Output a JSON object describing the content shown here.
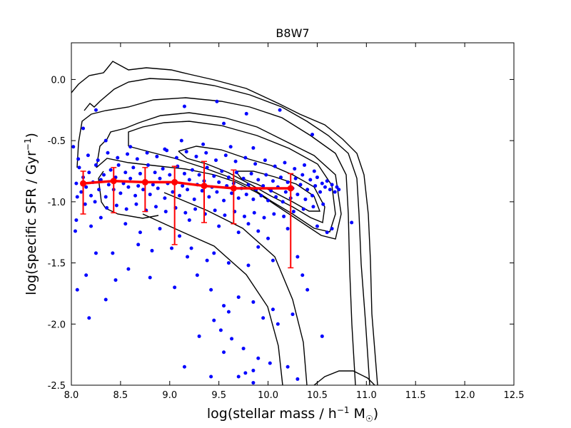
{
  "chart_data": {
    "type": "scatter",
    "title": "B8W7",
    "xlabel": {
      "main": "log(stellar mass / h",
      "sup": "−1",
      "unit": " M",
      "sub": "☉",
      "close": ")"
    },
    "ylabel": {
      "main": "log(specific SFR / Gyr",
      "sup": "−1",
      "close": ")"
    },
    "xlim": [
      8.0,
      12.5
    ],
    "ylim": [
      -2.5,
      0.3
    ],
    "xticks": [
      8.0,
      8.5,
      9.0,
      9.5,
      10.0,
      10.5,
      11.0,
      11.5,
      12.0,
      12.5
    ],
    "xtick_labels": [
      "8.0",
      "8.5",
      "9.0",
      "9.5",
      "10.0",
      "10.5",
      "11.0",
      "11.5",
      "12.0",
      "12.5"
    ],
    "yticks": [
      0.0,
      -0.5,
      -1.0,
      -1.5,
      -2.0,
      -2.5
    ],
    "ytick_labels": [
      "0.0",
      "-0.5",
      "-1.0",
      "-1.5",
      "-2.0",
      "-2.5"
    ],
    "colors": {
      "points": "#0000ff",
      "median": "#ff0000",
      "contours": "#000000"
    },
    "median_series": {
      "name": "median",
      "x": [
        8.12,
        8.43,
        8.75,
        9.05,
        9.35,
        9.65,
        10.23
      ],
      "y": [
        -0.85,
        -0.83,
        -0.84,
        -0.84,
        -0.87,
        -0.89,
        -0.89
      ],
      "err_low": [
        -1.1,
        -1.09,
        -1.08,
        -1.35,
        -1.17,
        -1.18,
        -1.54
      ],
      "err_high": [
        -0.75,
        -0.72,
        -0.72,
        -0.71,
        -0.67,
        -0.74,
        -0.77
      ]
    },
    "scatter_points": [
      [
        8.05,
        -0.85
      ],
      [
        8.08,
        -0.72
      ],
      [
        8.1,
        -0.92
      ],
      [
        8.12,
        -0.8
      ],
      [
        8.15,
        -0.88
      ],
      [
        8.18,
        -0.76
      ],
      [
        8.2,
        -0.95
      ],
      [
        8.22,
        -0.84
      ],
      [
        8.25,
        -0.7
      ],
      [
        8.28,
        -0.9
      ],
      [
        8.3,
        -0.82
      ],
      [
        8.33,
        -0.78
      ],
      [
        8.35,
        -0.96
      ],
      [
        8.38,
        -0.86
      ],
      [
        8.4,
        -0.74
      ],
      [
        8.43,
        -0.9
      ],
      [
        8.45,
        -0.8
      ],
      [
        8.48,
        -0.7
      ],
      [
        8.5,
        -0.93
      ],
      [
        8.53,
        -0.85
      ],
      [
        8.55,
        -0.76
      ],
      [
        8.58,
        -0.88
      ],
      [
        8.6,
        -0.81
      ],
      [
        8.63,
        -0.72
      ],
      [
        8.65,
        -0.95
      ],
      [
        8.68,
        -0.87
      ],
      [
        8.7,
        -0.77
      ],
      [
        8.73,
        -0.9
      ],
      [
        8.75,
        -0.83
      ],
      [
        8.78,
        -0.7
      ],
      [
        8.8,
        -0.94
      ],
      [
        8.83,
        -0.86
      ],
      [
        8.85,
        -0.76
      ],
      [
        8.88,
        -0.89
      ],
      [
        8.9,
        -0.81
      ],
      [
        8.93,
        -0.73
      ],
      [
        8.95,
        -0.97
      ],
      [
        8.98,
        -0.85
      ],
      [
        9.0,
        -0.78
      ],
      [
        9.03,
        -0.92
      ],
      [
        9.05,
        -0.83
      ],
      [
        9.08,
        -0.71
      ],
      [
        9.1,
        -0.95
      ],
      [
        9.13,
        -0.87
      ],
      [
        9.15,
        -0.77
      ],
      [
        9.18,
        -0.9
      ],
      [
        9.2,
        -0.82
      ],
      [
        9.23,
        -0.74
      ],
      [
        9.25,
        -0.98
      ],
      [
        9.28,
        -0.86
      ],
      [
        9.3,
        -0.78
      ],
      [
        9.33,
        -0.91
      ],
      [
        9.35,
        -0.83
      ],
      [
        9.38,
        -0.72
      ],
      [
        9.4,
        -0.96
      ],
      [
        9.43,
        -0.88
      ],
      [
        9.45,
        -0.79
      ],
      [
        9.48,
        -0.92
      ],
      [
        9.5,
        -0.84
      ],
      [
        9.53,
        -0.75
      ],
      [
        9.55,
        -0.99
      ],
      [
        9.58,
        -0.87
      ],
      [
        9.6,
        -0.8
      ],
      [
        9.63,
        -0.93
      ],
      [
        9.65,
        -0.85
      ],
      [
        9.68,
        -0.76
      ],
      [
        9.7,
        -0.97
      ],
      [
        9.73,
        -0.89
      ],
      [
        9.75,
        -0.81
      ],
      [
        9.78,
        -0.94
      ],
      [
        9.8,
        -0.86
      ],
      [
        9.83,
        -0.77
      ],
      [
        9.85,
        -0.98
      ],
      [
        9.88,
        -0.9
      ],
      [
        9.9,
        -0.82
      ],
      [
        9.93,
        -0.95
      ],
      [
        9.95,
        -0.87
      ],
      [
        9.98,
        -0.78
      ],
      [
        10.0,
        -0.99
      ],
      [
        10.03,
        -0.91
      ],
      [
        10.05,
        -0.83
      ],
      [
        10.08,
        -0.96
      ],
      [
        10.1,
        -0.88
      ],
      [
        10.13,
        -0.8
      ],
      [
        10.15,
        -1.0
      ],
      [
        10.18,
        -0.92
      ],
      [
        10.2,
        -0.84
      ],
      [
        10.23,
        -0.97
      ],
      [
        10.25,
        -0.89
      ],
      [
        10.28,
        -0.81
      ],
      [
        10.3,
        -0.94
      ],
      [
        10.33,
        -0.86
      ],
      [
        10.35,
        -0.78
      ],
      [
        10.38,
        -0.98
      ],
      [
        10.4,
        -0.9
      ],
      [
        10.43,
        -0.82
      ],
      [
        10.45,
        -0.95
      ],
      [
        10.48,
        -0.87
      ],
      [
        10.5,
        -0.8
      ],
      [
        10.53,
        -0.92
      ],
      [
        10.55,
        -0.85
      ],
      [
        10.58,
        -0.88
      ],
      [
        10.6,
        -0.83
      ],
      [
        10.63,
        -0.9
      ],
      [
        10.65,
        -0.86
      ],
      [
        10.68,
        -0.92
      ],
      [
        10.7,
        -0.88
      ],
      [
        10.72,
        -0.9
      ],
      [
        8.06,
        -0.96
      ],
      [
        8.14,
        -1.02
      ],
      [
        8.24,
        -1.0
      ],
      [
        8.36,
        -1.05
      ],
      [
        8.46,
        -1.03
      ],
      [
        8.56,
        -1.06
      ],
      [
        8.66,
        -1.02
      ],
      [
        8.76,
        -1.07
      ],
      [
        8.86,
        -1.04
      ],
      [
        8.96,
        -1.08
      ],
      [
        9.06,
        -1.05
      ],
      [
        9.16,
        -1.09
      ],
      [
        9.26,
        -1.06
      ],
      [
        9.36,
        -1.1
      ],
      [
        9.46,
        -1.07
      ],
      [
        9.56,
        -1.11
      ],
      [
        9.66,
        -1.08
      ],
      [
        9.76,
        -1.12
      ],
      [
        9.86,
        -1.09
      ],
      [
        9.96,
        -1.13
      ],
      [
        10.06,
        -1.1
      ],
      [
        10.16,
        -1.12
      ],
      [
        10.26,
        -1.08
      ],
      [
        10.36,
        -1.06
      ],
      [
        10.46,
        -1.04
      ],
      [
        10.56,
        -1.02
      ],
      [
        8.07,
        -0.65
      ],
      [
        8.17,
        -0.62
      ],
      [
        8.27,
        -0.66
      ],
      [
        8.37,
        -0.6
      ],
      [
        8.47,
        -0.64
      ],
      [
        8.57,
        -0.61
      ],
      [
        8.67,
        -0.65
      ],
      [
        8.77,
        -0.6
      ],
      [
        8.87,
        -0.63
      ],
      [
        8.97,
        -0.58
      ],
      [
        9.07,
        -0.64
      ],
      [
        9.17,
        -0.59
      ],
      [
        9.27,
        -0.63
      ],
      [
        9.37,
        -0.6
      ],
      [
        9.47,
        -0.66
      ],
      [
        9.57,
        -0.62
      ],
      [
        9.67,
        -0.67
      ],
      [
        9.77,
        -0.64
      ],
      [
        9.87,
        -0.69
      ],
      [
        9.97,
        -0.66
      ],
      [
        10.07,
        -0.71
      ],
      [
        10.17,
        -0.68
      ],
      [
        10.27,
        -0.73
      ],
      [
        10.37,
        -0.7
      ],
      [
        10.47,
        -0.75
      ],
      [
        8.02,
        -0.55
      ],
      [
        8.35,
        -0.5
      ],
      [
        8.6,
        -0.55
      ],
      [
        8.95,
        -0.57
      ],
      [
        9.12,
        -0.5
      ],
      [
        9.34,
        -0.53
      ],
      [
        9.62,
        -0.55
      ],
      [
        9.85,
        -0.56
      ],
      [
        10.45,
        -0.45
      ],
      [
        9.55,
        -0.36
      ],
      [
        8.12,
        -0.4
      ],
      [
        8.25,
        -0.25
      ],
      [
        9.15,
        -0.22
      ],
      [
        9.78,
        -0.28
      ],
      [
        10.12,
        -0.25
      ],
      [
        9.48,
        -0.18
      ],
      [
        8.05,
        -1.15
      ],
      [
        8.2,
        -1.2
      ],
      [
        8.3,
        -1.13
      ],
      [
        8.55,
        -1.18
      ],
      [
        8.7,
        -1.25
      ],
      [
        8.9,
        -1.22
      ],
      [
        9.1,
        -1.28
      ],
      [
        9.2,
        -1.15
      ],
      [
        9.5,
        -1.2
      ],
      [
        9.7,
        -1.25
      ],
      [
        9.8,
        -1.18
      ],
      [
        9.9,
        -1.24
      ],
      [
        10.0,
        -1.3
      ],
      [
        10.2,
        -1.22
      ],
      [
        10.5,
        -1.2
      ],
      [
        10.6,
        -1.25
      ],
      [
        10.65,
        -1.22
      ],
      [
        10.85,
        -1.17
      ],
      [
        8.04,
        -1.24
      ],
      [
        8.25,
        -1.42
      ],
      [
        8.42,
        -1.42
      ],
      [
        8.58,
        -1.55
      ],
      [
        8.68,
        -1.35
      ],
      [
        8.82,
        -1.4
      ],
      [
        9.02,
        -1.38
      ],
      [
        9.18,
        -1.45
      ],
      [
        9.22,
        -1.38
      ],
      [
        9.38,
        -1.48
      ],
      [
        9.45,
        -1.42
      ],
      [
        9.6,
        -1.5
      ],
      [
        9.8,
        -1.52
      ],
      [
        9.9,
        -1.37
      ],
      [
        10.05,
        -1.48
      ],
      [
        10.3,
        -1.45
      ],
      [
        10.35,
        -1.6
      ],
      [
        8.06,
        -1.72
      ],
      [
        8.15,
        -1.6
      ],
      [
        8.45,
        -1.64
      ],
      [
        8.35,
        -1.8
      ],
      [
        8.8,
        -1.62
      ],
      [
        9.05,
        -1.7
      ],
      [
        9.28,
        -1.6
      ],
      [
        9.42,
        -1.72
      ],
      [
        9.55,
        -1.85
      ],
      [
        9.6,
        -1.9
      ],
      [
        9.7,
        -1.78
      ],
      [
        9.85,
        -1.82
      ],
      [
        9.95,
        -1.95
      ],
      [
        10.05,
        -1.88
      ],
      [
        10.1,
        -2.0
      ],
      [
        10.25,
        -1.92
      ],
      [
        10.4,
        -1.72
      ],
      [
        10.55,
        -2.1
      ],
      [
        8.18,
        -1.95
      ],
      [
        9.45,
        -1.97
      ],
      [
        9.52,
        -2.05
      ],
      [
        9.63,
        -2.12
      ],
      [
        9.75,
        -2.2
      ],
      [
        9.9,
        -2.28
      ],
      [
        10.02,
        -2.32
      ],
      [
        10.2,
        -2.35
      ],
      [
        10.3,
        -2.45
      ],
      [
        9.15,
        -2.35
      ],
      [
        9.7,
        -2.43
      ],
      [
        9.77,
        -2.4
      ],
      [
        9.85,
        -2.38
      ],
      [
        9.42,
        -2.43
      ],
      [
        9.55,
        -2.23
      ],
      [
        9.3,
        -2.1
      ],
      [
        9.85,
        -2.48
      ]
    ]
  }
}
